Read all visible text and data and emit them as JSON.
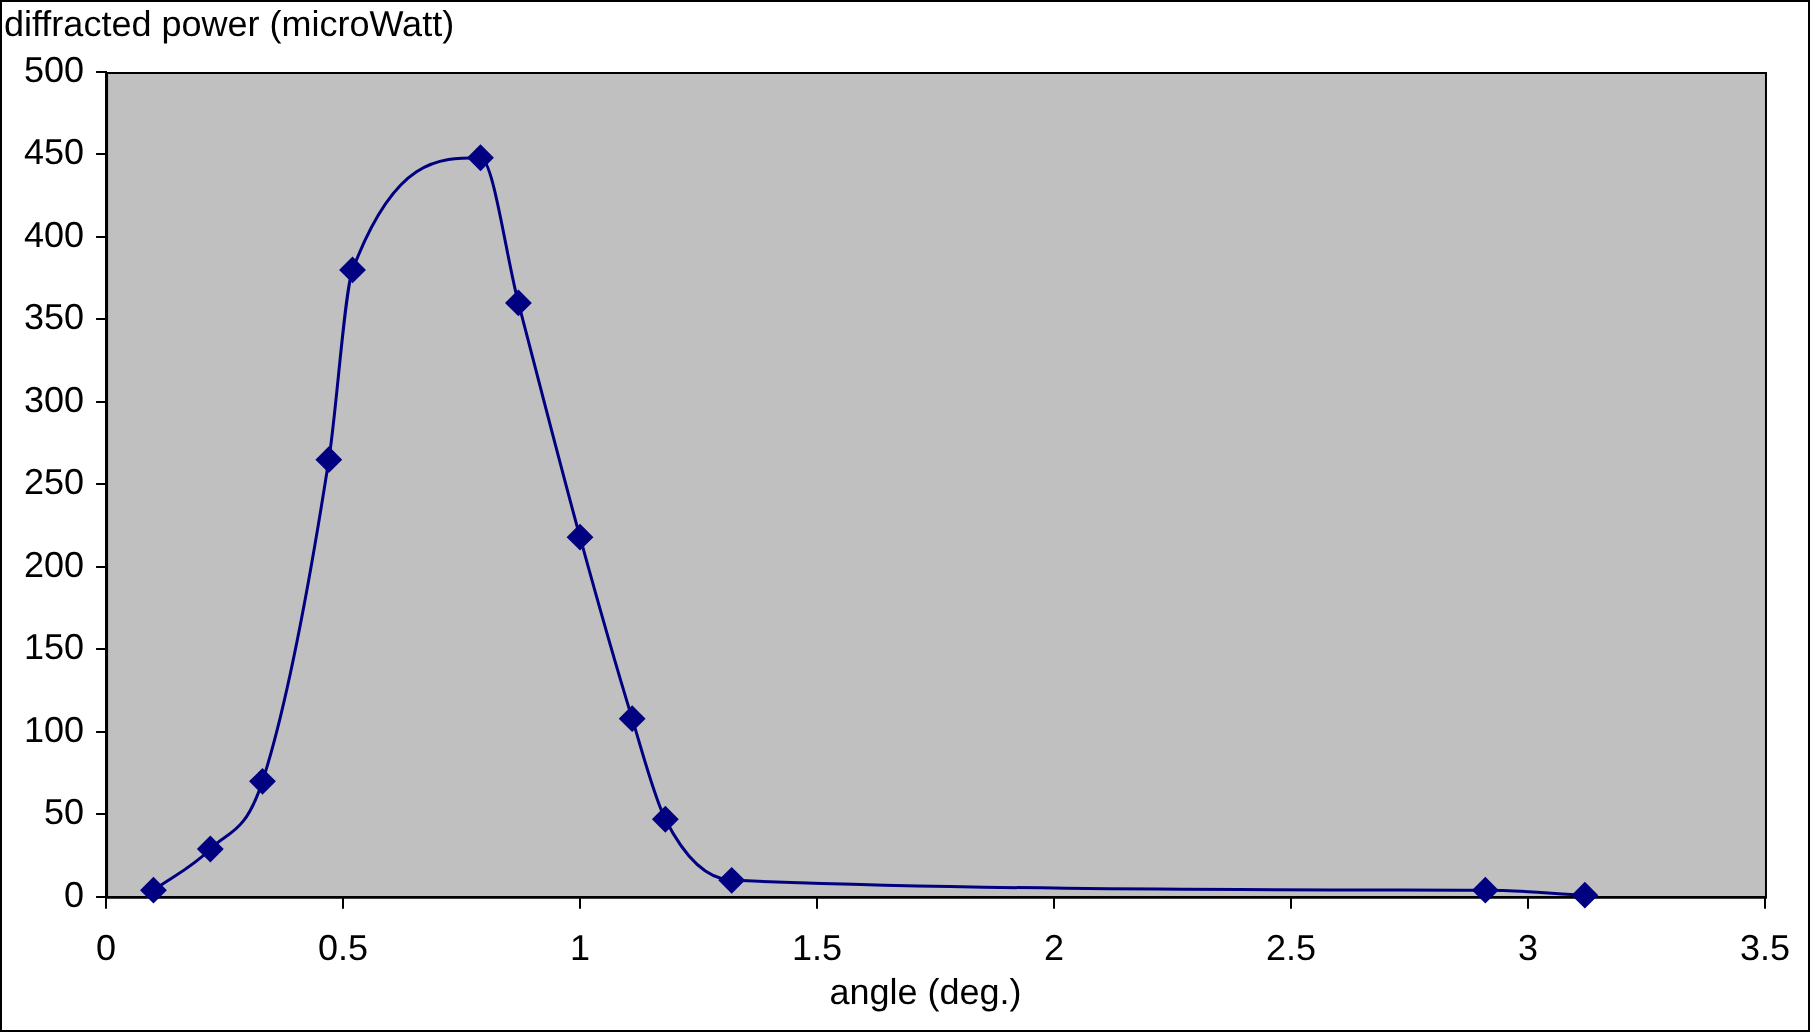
{
  "chart_data": {
    "type": "line",
    "xlabel": "angle (deg.)",
    "ylabel": "diffracted power (microWatt)",
    "x": [
      0.1,
      0.22,
      0.33,
      0.47,
      0.52,
      0.79,
      0.87,
      1.0,
      1.11,
      1.18,
      1.32,
      2.91,
      3.12
    ],
    "series": [
      {
        "color": "#000080",
        "values": [
          4,
          29,
          70,
          265,
          380,
          448,
          360,
          218,
          108,
          47,
          10,
          4,
          1
        ]
      }
    ],
    "xlim": [
      0,
      3.5
    ],
    "xticks": [
      0,
      0.5,
      1,
      1.5,
      2,
      2.5,
      3,
      3.5
    ],
    "ylim": [
      0,
      500
    ],
    "yticks": [
      0,
      50,
      100,
      150,
      200,
      250,
      300,
      350,
      400,
      450,
      500
    ],
    "marker": "diamond",
    "line_style": "solid",
    "grid": false,
    "legend": false
  }
}
